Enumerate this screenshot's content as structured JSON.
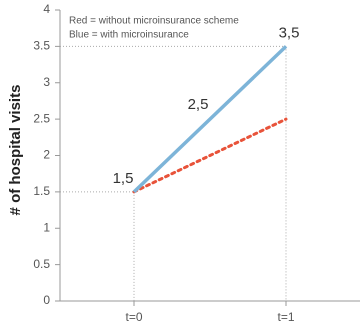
{
  "chart_data": {
    "type": "line",
    "y_label": "# of hospital visits",
    "categories": [
      "t=0",
      "t=1"
    ],
    "series": [
      {
        "name": "Red = without microinsurance scheme",
        "color": "#e8533a",
        "style": "dotted",
        "values": [
          1.5,
          2.5
        ]
      },
      {
        "name": "Blue = with microinsurance",
        "color": "#7db4d8",
        "style": "solid",
        "values": [
          1.5,
          3.5
        ],
        "value_labels": [
          "1,5",
          "3,5"
        ]
      }
    ],
    "annotations": [
      {
        "text": "2,5"
      }
    ],
    "ylim": [
      0,
      4
    ],
    "yticks": [
      0,
      0.5,
      1,
      1.5,
      2,
      2.5,
      3,
      3.5,
      4
    ],
    "legend": "top-left"
  }
}
